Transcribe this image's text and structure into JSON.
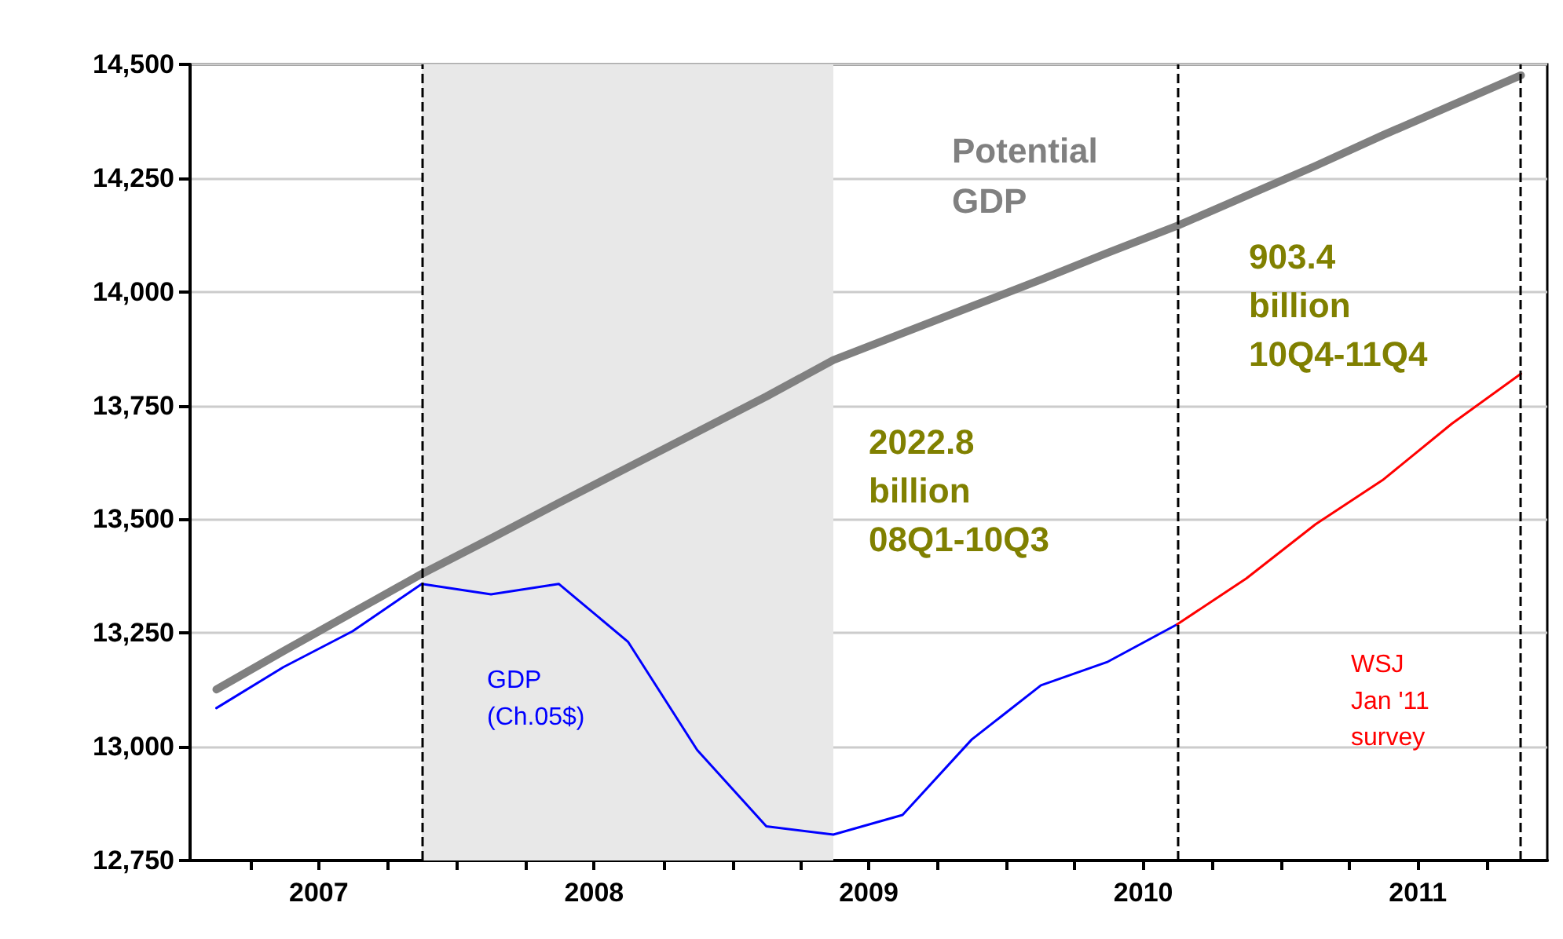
{
  "chart_data": {
    "type": "line",
    "x": [
      "2007-02-15",
      "2007-05-15",
      "2007-08-15",
      "2007-11-15",
      "2008-02-15",
      "2008-05-15",
      "2008-08-15",
      "2008-11-15",
      "2009-02-15",
      "2009-05-15",
      "2009-08-15",
      "2009-11-15",
      "2010-02-15",
      "2010-05-15",
      "2010-08-15",
      "2010-11-15",
      "2011-02-15",
      "2011-05-15",
      "2011-08-15",
      "2011-11-15"
    ],
    "series": [
      {
        "name": "Potential\nGDP",
        "color": "#808080",
        "values": [
          13126,
          13210,
          13295,
          13380,
          13458,
          13536,
          13614,
          13692,
          13770,
          13850,
          13909,
          13968,
          14027,
          14086,
          14145,
          14211,
          14277,
          14344,
          14410,
          14476
        ]
      },
      {
        "name": "GDP\n(Ch.05$)",
        "color": "#0000ff",
        "values": [
          13085,
          13175,
          13254,
          13358,
          13335,
          13358,
          13231,
          12993,
          12825,
          12807,
          12850,
          13016,
          13135,
          13187,
          13269,
          null,
          null,
          null,
          null,
          null
        ]
      },
      {
        "name": "WSJ\nJan '11\nsurvey",
        "color": "#ff0000",
        "values": [
          null,
          null,
          null,
          null,
          null,
          null,
          null,
          null,
          null,
          null,
          null,
          null,
          null,
          null,
          13269,
          13370,
          13489,
          13586,
          13710,
          13820
        ]
      }
    ],
    "xlim": [
      "2007-01-11",
      "2011-12-20"
    ],
    "xticks": [
      {
        "value": "2007-04-01",
        "label": null
      },
      {
        "value": "2007-07-01",
        "label": "2007"
      },
      {
        "value": "2007-10-01",
        "label": null
      },
      {
        "value": "2008-01-01",
        "label": null
      },
      {
        "value": "2008-04-01",
        "label": null
      },
      {
        "value": "2008-07-01",
        "label": "2008"
      },
      {
        "value": "2008-10-01",
        "label": null
      },
      {
        "value": "2009-01-01",
        "label": null
      },
      {
        "value": "2009-04-01",
        "label": null
      },
      {
        "value": "2009-07-01",
        "label": "2009"
      },
      {
        "value": "2009-10-01",
        "label": null
      },
      {
        "value": "2010-01-01",
        "label": null
      },
      {
        "value": "2010-04-01",
        "label": null
      },
      {
        "value": "2010-07-01",
        "label": "2010"
      },
      {
        "value": "2010-10-01",
        "label": null
      },
      {
        "value": "2011-01-01",
        "label": null
      },
      {
        "value": "2011-04-01",
        "label": null
      },
      {
        "value": "2011-07-01",
        "label": "2011"
      },
      {
        "value": "2011-10-01",
        "label": null
      }
    ],
    "ylim": [
      12750,
      14500
    ],
    "yticks": [
      {
        "value": 12750,
        "label": "12,750"
      },
      {
        "value": 13000,
        "label": "13,000"
      },
      {
        "value": 13250,
        "label": "13,250"
      },
      {
        "value": 13500,
        "label": "13,500"
      },
      {
        "value": 13750,
        "label": "13,750"
      },
      {
        "value": 14000,
        "label": "14,000"
      },
      {
        "value": 14250,
        "label": "14,250"
      },
      {
        "value": 14500,
        "label": "14,500"
      }
    ],
    "grid": "y",
    "legend": false,
    "marker": "none",
    "line_style": "solid",
    "ref_lines": [
      {
        "axis": "x",
        "value": "2007-11-15",
        "color": "#000000",
        "line_style": "dashed"
      },
      {
        "axis": "x",
        "value": "2010-08-15",
        "color": "#000000",
        "line_style": "dashed"
      },
      {
        "axis": "x",
        "value": "2011-11-15",
        "color": "#000000",
        "line_style": "dashed"
      }
    ],
    "bands": [
      {
        "axis": "x",
        "from": "2007-11-15",
        "to": "2009-05-15",
        "color": "#e8e8e8"
      }
    ],
    "annotations": [
      "2022.8\nbillion\n08Q1-10Q3",
      "903.4\nbillion\n10Q4-11Q4"
    ]
  }
}
